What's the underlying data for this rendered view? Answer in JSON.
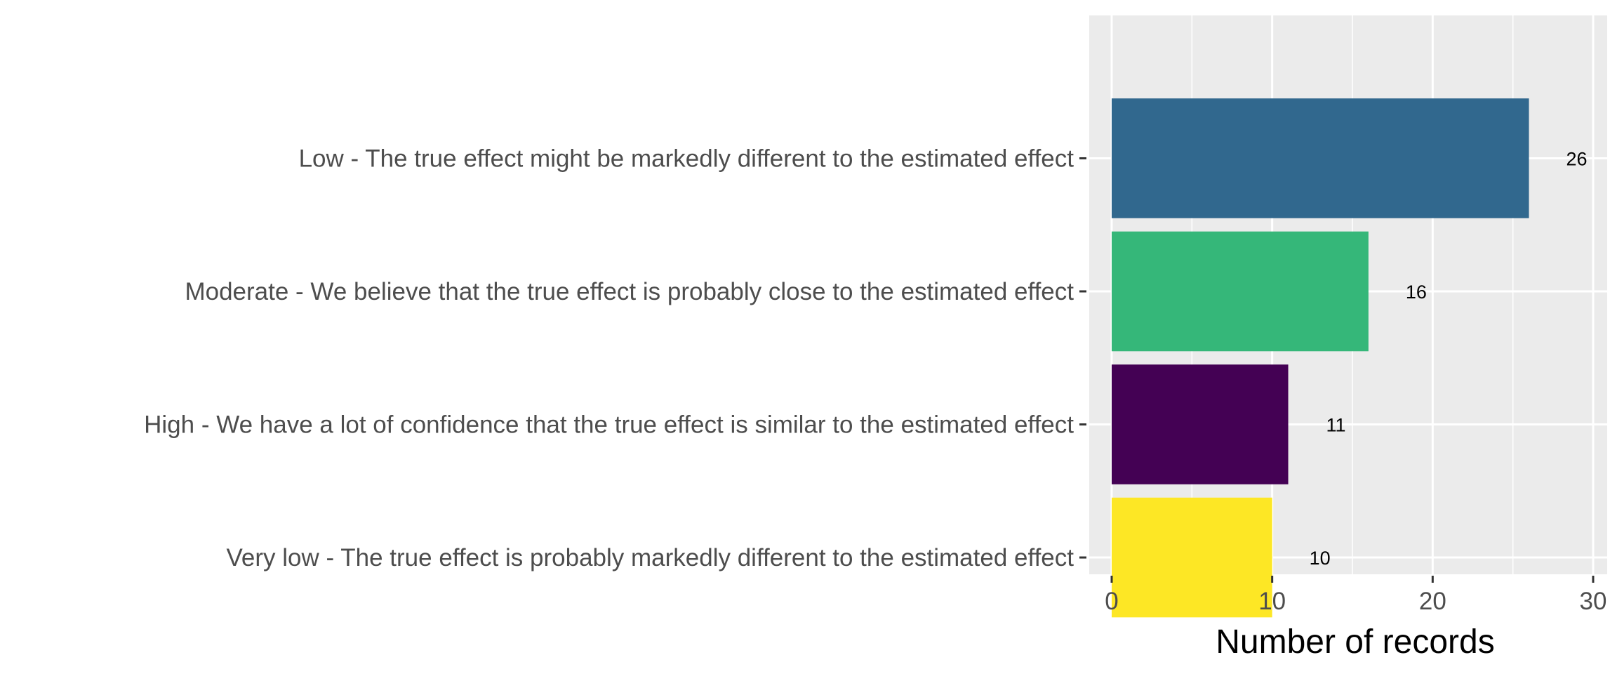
{
  "chart_data": {
    "type": "bar",
    "orientation": "horizontal",
    "title": "",
    "xlabel": "Number of records",
    "ylabel": "",
    "xlim": [
      0,
      30
    ],
    "x_ticks": [
      0,
      10,
      20,
      30
    ],
    "grid": true,
    "legend": "none",
    "background": "#ebebeb",
    "categories": [
      "Low - The true effect might be markedly different to the estimated effect",
      "Moderate - We believe that the true effect is probably close to the estimated effect",
      "High - We have a lot of confidence that the true effect is similar to the estimated effect",
      "Very low - The true effect is probably markedly different to the estimated effect"
    ],
    "values": [
      26,
      16,
      11,
      10
    ],
    "colors": [
      "#31688e",
      "#35b779",
      "#440154",
      "#fde725"
    ]
  }
}
